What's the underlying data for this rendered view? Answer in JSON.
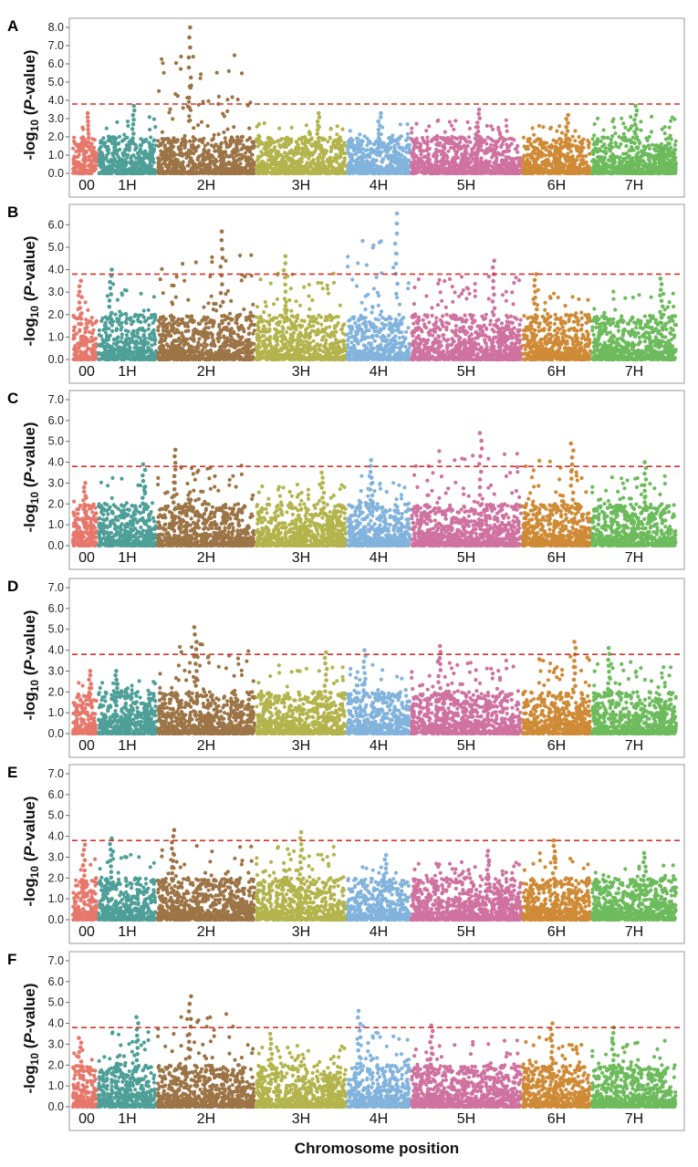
{
  "chart_data": {
    "type": "scatter",
    "subtype": "manhattan",
    "xlabel": "Chromosome position",
    "ylabel_prefix": "-log",
    "ylabel_sub": "10",
    "ylabel_open": " (",
    "ylabel_italic": "P",
    "ylabel_suffix": "-value)",
    "chromosomes": [
      {
        "name": "00",
        "color": "#e7776b"
      },
      {
        "name": "1H",
        "color": "#4e9f98"
      },
      {
        "name": "2H",
        "color": "#9c7446"
      },
      {
        "name": "3H",
        "color": "#b3b44c"
      },
      {
        "name": "4H",
        "color": "#82b3dc"
      },
      {
        "name": "5H",
        "color": "#cf72a0"
      },
      {
        "name": "6H",
        "color": "#cf8a36"
      },
      {
        "name": "7H",
        "color": "#6dbb5c"
      }
    ],
    "threshold": 3.8,
    "threshold_color": "#d9302a",
    "panels": [
      {
        "label": "A",
        "ymax": 8.0,
        "yticks": [
          "0.0",
          "1.0",
          "2.0",
          "3.0",
          "4.0",
          "5.0",
          "6.0",
          "7.0",
          "8.0"
        ],
        "peaks": {
          "00": 3.3,
          "1H": 3.7,
          "2H": 8.0,
          "3H": 3.3,
          "4H": 3.3,
          "5H": 3.5,
          "6H": 3.2,
          "7H": 3.7
        }
      },
      {
        "label": "B",
        "ymax": 6.5,
        "yticks": [
          "0.0",
          "1.0",
          "2.0",
          "3.0",
          "4.0",
          "5.0",
          "6.0"
        ],
        "peaks": {
          "00": 3.5,
          "1H": 4.0,
          "2H": 5.7,
          "3H": 4.6,
          "4H": 6.5,
          "5H": 4.4,
          "6H": 3.8,
          "7H": 3.6
        }
      },
      {
        "label": "C",
        "ymax": 7.0,
        "yticks": [
          "0.0",
          "1.0",
          "2.0",
          "3.0",
          "4.0",
          "5.0",
          "6.0",
          "7.0"
        ],
        "peaks": {
          "00": 3.0,
          "1H": 3.9,
          "2H": 4.6,
          "3H": 3.5,
          "4H": 4.1,
          "5H": 5.4,
          "6H": 4.9,
          "7H": 4.0
        }
      },
      {
        "label": "D",
        "ymax": 7.0,
        "yticks": [
          "0.0",
          "1.0",
          "2.0",
          "3.0",
          "4.0",
          "5.0",
          "6.0",
          "7.0"
        ],
        "peaks": {
          "00": 3.0,
          "1H": 3.0,
          "2H": 5.1,
          "3H": 3.9,
          "4H": 4.0,
          "5H": 4.2,
          "6H": 4.4,
          "7H": 4.1
        }
      },
      {
        "label": "E",
        "ymax": 7.0,
        "yticks": [
          "0.0",
          "1.0",
          "2.0",
          "3.0",
          "4.0",
          "5.0",
          "6.0",
          "7.0"
        ],
        "peaks": {
          "00": 3.6,
          "1H": 3.9,
          "2H": 4.3,
          "3H": 4.2,
          "4H": 3.1,
          "5H": 3.3,
          "6H": 3.8,
          "7H": 3.2
        }
      },
      {
        "label": "F",
        "ymax": 7.0,
        "yticks": [
          "0.0",
          "1.0",
          "2.0",
          "3.0",
          "4.0",
          "5.0",
          "6.0",
          "7.0"
        ],
        "peaks": {
          "00": 3.3,
          "1H": 4.3,
          "2H": 5.3,
          "3H": 3.5,
          "4H": 4.6,
          "5H": 3.9,
          "6H": 4.0,
          "7H": 3.8
        }
      }
    ]
  }
}
